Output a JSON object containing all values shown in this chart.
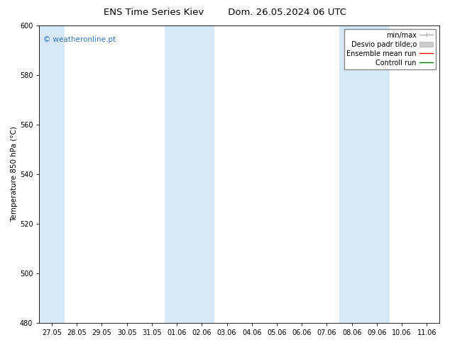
{
  "title_left": "ENS Time Series Kiev",
  "title_right": "Dom. 26.05.2024 06 UTC",
  "ylabel": "Temperature 850 hPa (°C)",
  "ylim": [
    480,
    600
  ],
  "yticks": [
    480,
    500,
    520,
    540,
    560,
    580,
    600
  ],
  "x_tick_labels": [
    "27.05",
    "28.05",
    "29.05",
    "30.05",
    "31.05",
    "01.06",
    "02.06",
    "03.06",
    "04.06",
    "05.06",
    "06.06",
    "07.06",
    "08.06",
    "09.06",
    "10.06",
    "11.06"
  ],
  "x_tick_positions": [
    0,
    1,
    2,
    3,
    4,
    5,
    6,
    7,
    8,
    9,
    10,
    11,
    12,
    13,
    14,
    15
  ],
  "shaded_columns": [
    0,
    5,
    6,
    12,
    13
  ],
  "shade_color": "#d6e8f5",
  "bg_color": "#ffffff",
  "plot_bg_color": "#ffffff",
  "watermark_text": "© weatheronline.pt",
  "watermark_color": "#3377bb",
  "legend_entries": [
    {
      "label": "min/max",
      "color": "#aaaaaa",
      "lw": 1.0
    },
    {
      "label": "Desvio padr tilde;o",
      "color": "#cccccc",
      "lw": 5
    },
    {
      "label": "Ensemble mean run",
      "color": "#dd0000",
      "lw": 1.0
    },
    {
      "label": "Controll run",
      "color": "#007700",
      "lw": 1.0
    }
  ],
  "title_fontsize": 9.5,
  "tick_label_fontsize": 7,
  "ylabel_fontsize": 7.5,
  "legend_fontsize": 7,
  "watermark_fontsize": 7.5
}
